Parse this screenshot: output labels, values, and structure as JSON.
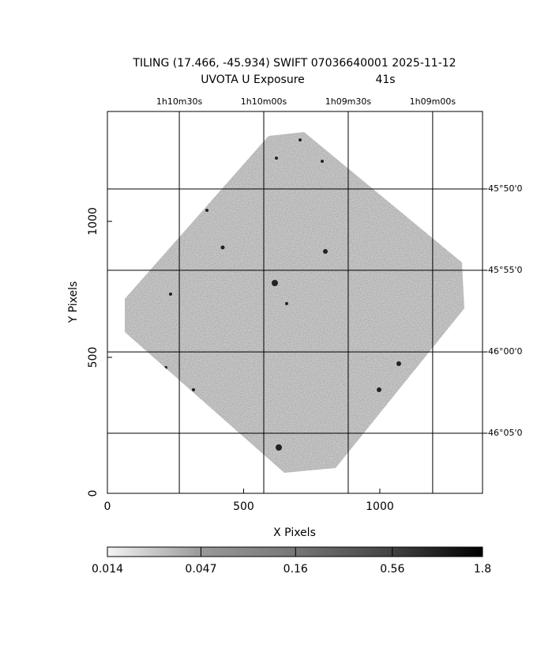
{
  "chart_data": {
    "type": "image",
    "title": "TILING (17.466, -45.934) SWIFT 07036640001 2025-11-12",
    "subtitle": "UVOTA U Exposure",
    "exposure": "41s",
    "xlabel": "X Pixels",
    "ylabel": "Y Pixels",
    "xlim": [
      0,
      1377
    ],
    "ylim": [
      0,
      1404
    ],
    "xticks": [
      0,
      500,
      1000
    ],
    "yticks": [
      0,
      500,
      1000
    ],
    "x2ticks": [
      {
        "value": 264,
        "label": "1h10m30s"
      },
      {
        "value": 574,
        "label": "1h10m00s"
      },
      {
        "value": 884,
        "label": "1h09m30s"
      },
      {
        "value": 1194,
        "label": "1h09m00s"
      }
    ],
    "y2ticks": [
      {
        "value": 1119,
        "label": "-45°50'0"
      },
      {
        "value": 820,
        "label": "-45°55'0"
      },
      {
        "value": 520,
        "label": "-46°00'0"
      },
      {
        "value": 221,
        "label": "-46°05'0"
      }
    ],
    "grid": true,
    "colorbar": {
      "scale": "log",
      "lim": [
        0.014,
        1.8
      ],
      "ticks": [
        0.014,
        0.047,
        0.16,
        0.56,
        1.8
      ]
    }
  }
}
